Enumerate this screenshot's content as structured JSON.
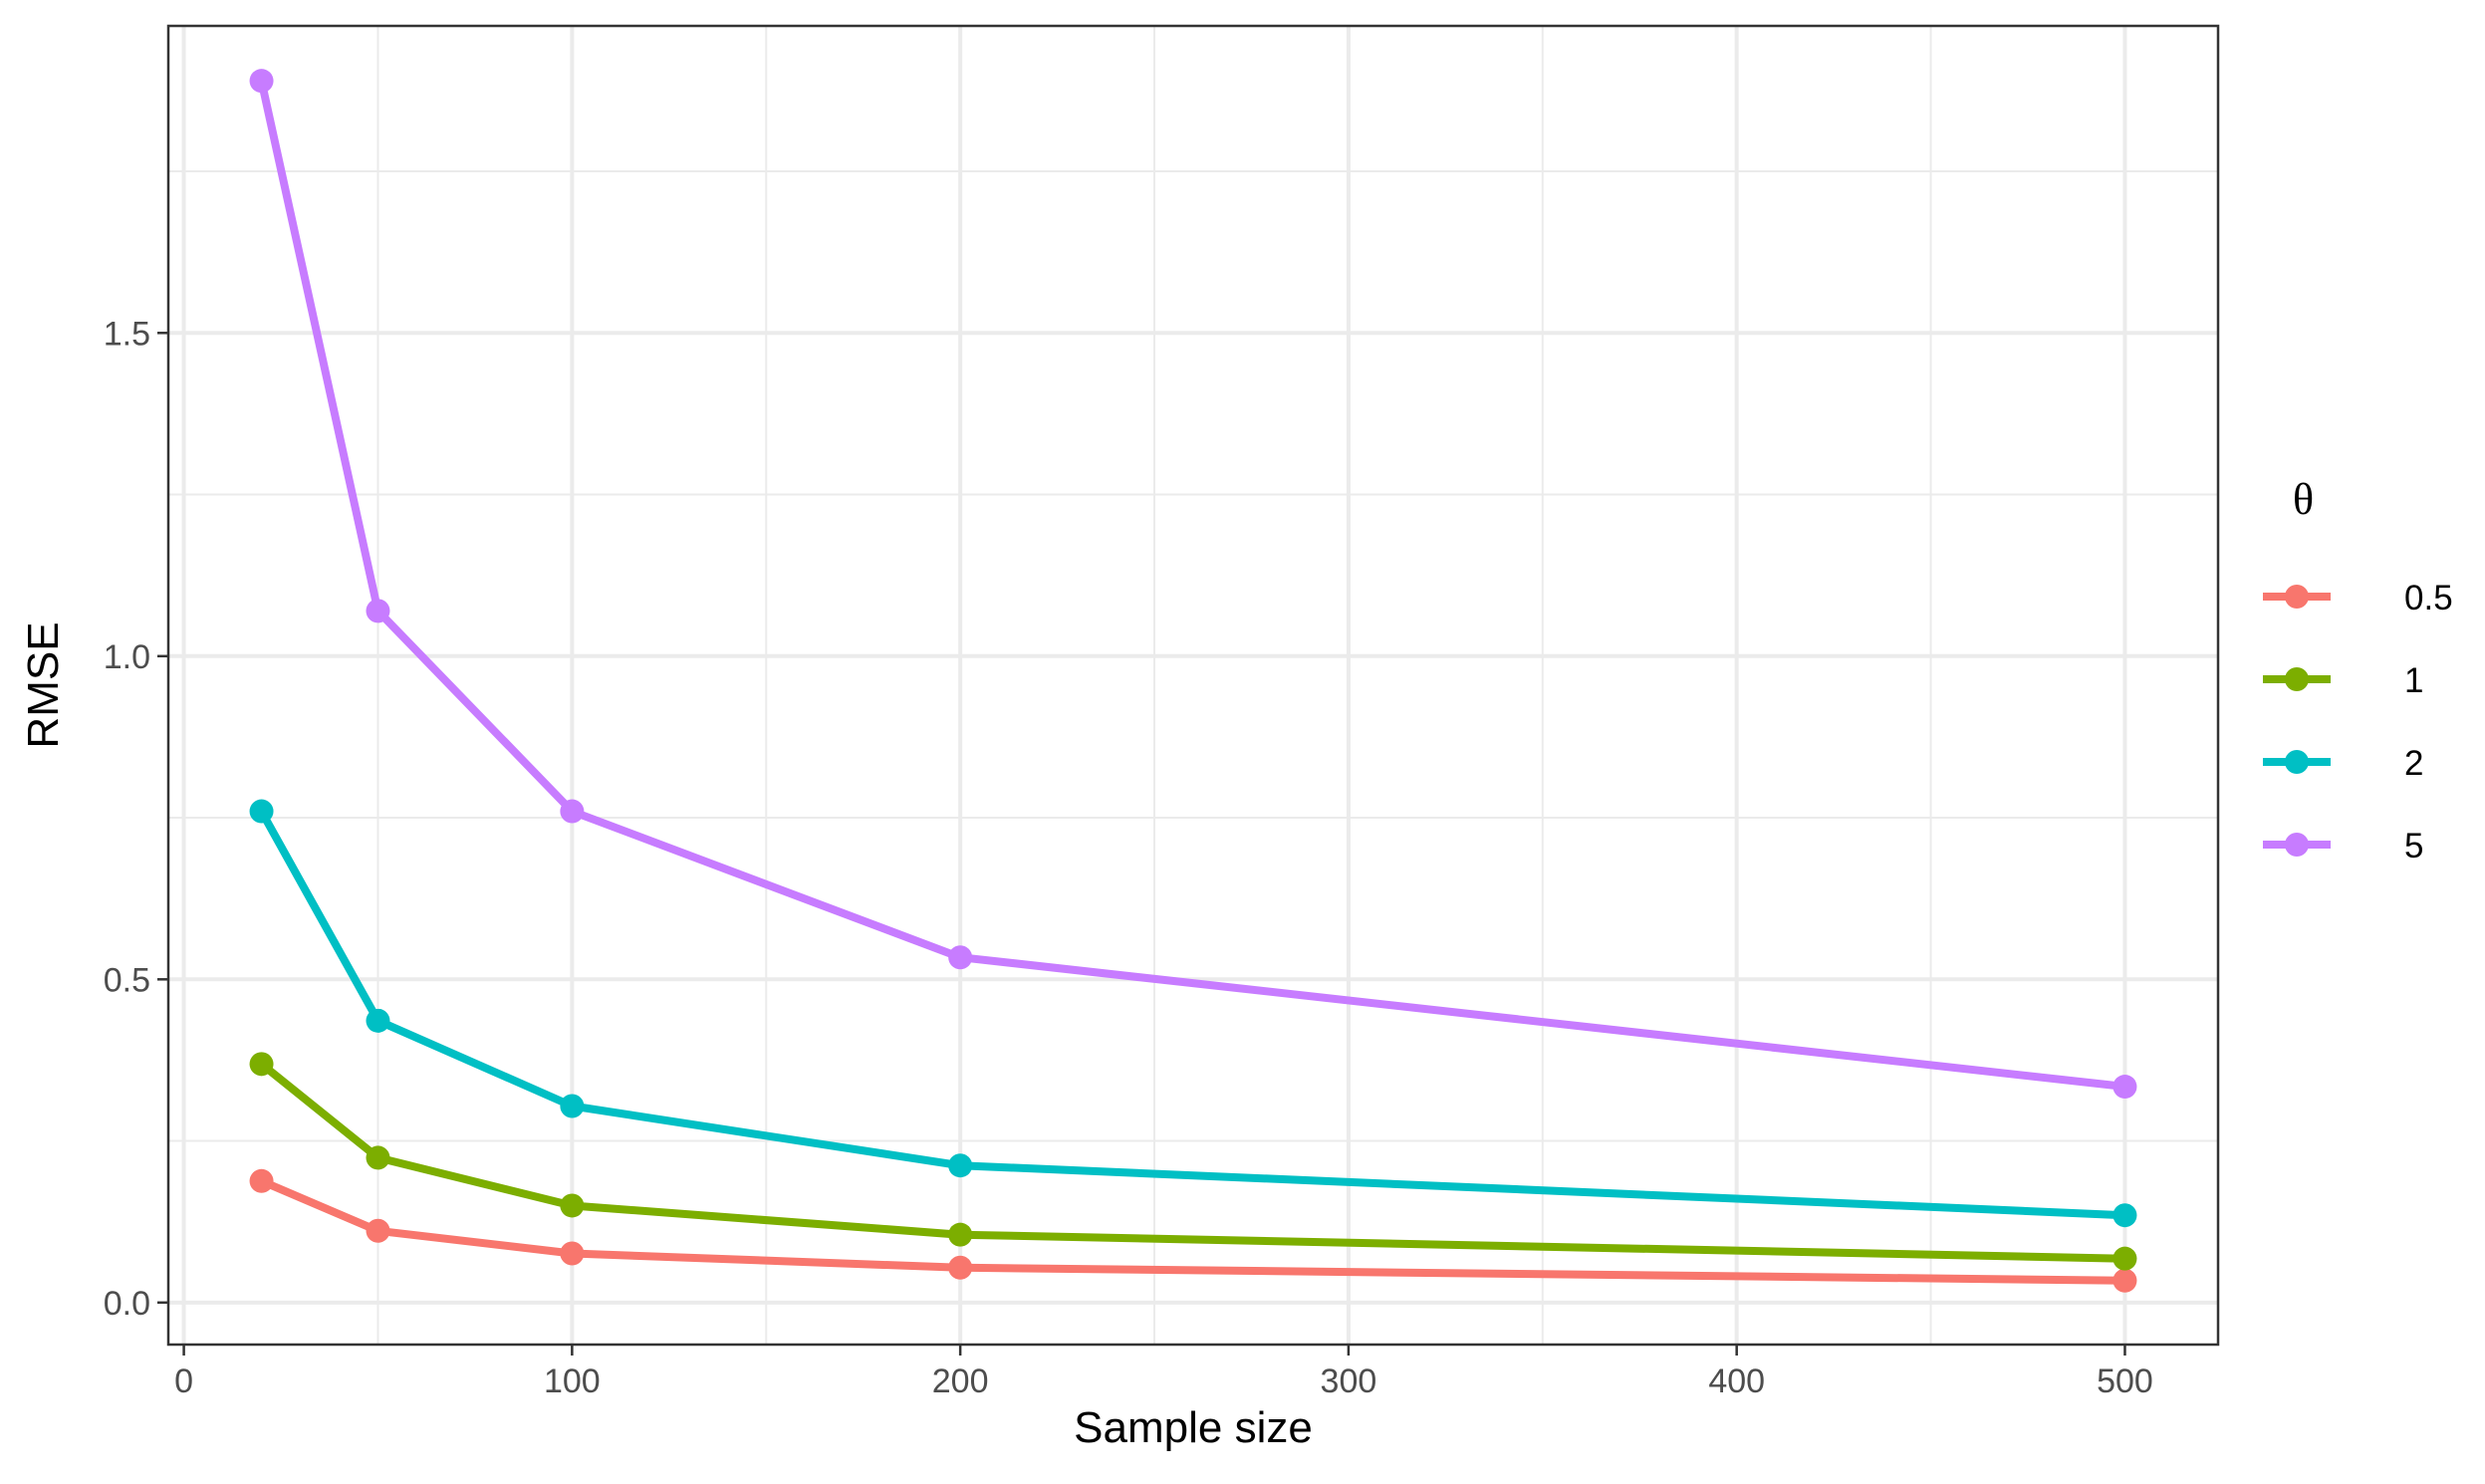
{
  "chart_data": {
    "type": "line",
    "xlabel": "Sample size",
    "ylabel": "RMSE",
    "x": [
      20,
      50,
      100,
      200,
      500
    ],
    "xlim": [
      -4,
      524
    ],
    "ylim": [
      -0.065,
      1.975
    ],
    "xticks": [
      0,
      100,
      200,
      300,
      400,
      500
    ],
    "xtick_labels": [
      "0",
      "100",
      "200",
      "300",
      "400",
      "500"
    ],
    "yticks": [
      0.0,
      0.5,
      1.0,
      1.5
    ],
    "ytick_labels": [
      "0.0",
      "0.5",
      "1.0",
      "1.5"
    ],
    "x_minor_grid": [
      50,
      150,
      250,
      350,
      450
    ],
    "y_minor_grid": [
      0.25,
      0.75,
      1.25,
      1.75
    ],
    "grid": true,
    "legend": {
      "title": "θ",
      "position": "right"
    },
    "series": [
      {
        "name": "0.5",
        "color": "#F8766D",
        "values": [
          0.188,
          0.111,
          0.076,
          0.054,
          0.034
        ]
      },
      {
        "name": "1",
        "color": "#7CAE00",
        "values": [
          0.369,
          0.224,
          0.15,
          0.105,
          0.068
        ]
      },
      {
        "name": "2",
        "color": "#00BFC4",
        "values": [
          0.76,
          0.436,
          0.304,
          0.212,
          0.135
        ]
      },
      {
        "name": "5",
        "color": "#C77CFF",
        "values": [
          1.89,
          1.07,
          0.76,
          0.534,
          0.334
        ]
      }
    ]
  }
}
